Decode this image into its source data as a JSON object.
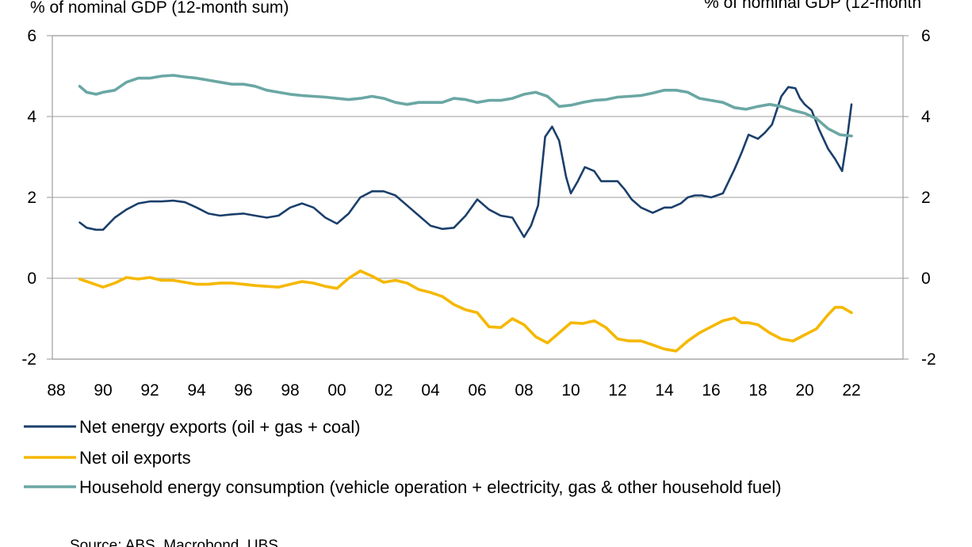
{
  "chart_data": {
    "type": "line",
    "left_axis_title": "% of nominal GDP (12-month sum)",
    "right_axis_title": "% of nominal GDP (12-month",
    "ylim": [
      -2,
      6
    ],
    "y_ticks": [
      "-2",
      "0",
      "2",
      "4",
      "6"
    ],
    "x_ticks": [
      "88",
      "90",
      "92",
      "94",
      "96",
      "98",
      "00",
      "02",
      "04",
      "06",
      "08",
      "10",
      "12",
      "14",
      "16",
      "18",
      "20",
      "22"
    ],
    "x_range": [
      1988,
      2023
    ],
    "series": [
      {
        "name": "Net energy exports (oil + gas + coal)",
        "color": "#1b3f6b",
        "x": [
          1989.0,
          1989.3,
          1989.7,
          1990.0,
          1990.5,
          1991.0,
          1991.5,
          1992.0,
          1992.5,
          1993.0,
          1993.5,
          1994.0,
          1994.5,
          1995.0,
          1995.5,
          1996.0,
          1996.5,
          1997.0,
          1997.5,
          1998.0,
          1998.5,
          1999.0,
          1999.5,
          2000.0,
          2000.5,
          2001.0,
          2001.5,
          2002.0,
          2002.5,
          2003.0,
          2003.5,
          2004.0,
          2004.5,
          2005.0,
          2005.5,
          2006.0,
          2006.5,
          2007.0,
          2007.5,
          2008.0,
          2008.3,
          2008.6,
          2008.9,
          2009.2,
          2009.5,
          2009.8,
          2010.0,
          2010.3,
          2010.6,
          2011.0,
          2011.3,
          2011.6,
          2012.0,
          2012.3,
          2012.6,
          2013.0,
          2013.5,
          2014.0,
          2014.3,
          2014.7,
          2015.0,
          2015.3,
          2015.6,
          2016.0,
          2016.5,
          2017.0,
          2017.3,
          2017.6,
          2018.0,
          2018.3,
          2018.6,
          2019.0,
          2019.3,
          2019.6,
          2019.8,
          2020.0,
          2020.3,
          2020.6,
          2021.0,
          2021.3,
          2021.6,
          2021.8,
          2022.0
        ],
        "values": [
          1.38,
          1.25,
          1.2,
          1.2,
          1.5,
          1.7,
          1.85,
          1.9,
          1.9,
          1.92,
          1.88,
          1.75,
          1.6,
          1.55,
          1.58,
          1.6,
          1.55,
          1.5,
          1.55,
          1.75,
          1.85,
          1.75,
          1.5,
          1.35,
          1.6,
          2.0,
          2.15,
          2.15,
          2.05,
          1.8,
          1.55,
          1.3,
          1.22,
          1.25,
          1.55,
          1.95,
          1.7,
          1.55,
          1.5,
          1.02,
          1.3,
          1.8,
          3.5,
          3.75,
          3.4,
          2.5,
          2.1,
          2.4,
          2.75,
          2.65,
          2.4,
          2.4,
          2.4,
          2.2,
          1.95,
          1.75,
          1.62,
          1.75,
          1.75,
          1.85,
          2.0,
          2.05,
          2.05,
          2.0,
          2.1,
          2.7,
          3.1,
          3.55,
          3.45,
          3.6,
          3.8,
          4.5,
          4.73,
          4.7,
          4.45,
          4.3,
          4.15,
          3.7,
          3.2,
          2.95,
          2.65,
          3.4,
          4.3
        ]
      },
      {
        "name": "Net oil exports",
        "color": "#f5b800",
        "x": [
          1989.0,
          1989.5,
          1990.0,
          1990.5,
          1991.0,
          1991.5,
          1992.0,
          1992.5,
          1993.0,
          1993.5,
          1994.0,
          1994.5,
          1995.0,
          1995.5,
          1996.0,
          1996.5,
          1997.0,
          1997.5,
          1998.0,
          1998.5,
          1999.0,
          1999.5,
          2000.0,
          2000.5,
          2001.0,
          2001.5,
          2002.0,
          2002.5,
          2003.0,
          2003.5,
          2004.0,
          2004.5,
          2005.0,
          2005.5,
          2006.0,
          2006.5,
          2007.0,
          2007.5,
          2008.0,
          2008.5,
          2009.0,
          2009.5,
          2010.0,
          2010.5,
          2011.0,
          2011.5,
          2012.0,
          2012.5,
          2013.0,
          2013.5,
          2014.0,
          2014.5,
          2015.0,
          2015.5,
          2016.0,
          2016.5,
          2017.0,
          2017.3,
          2017.6,
          2018.0,
          2018.5,
          2019.0,
          2019.5,
          2020.0,
          2020.5,
          2021.0,
          2021.3,
          2021.6,
          2022.0
        ],
        "values": [
          -0.02,
          -0.12,
          -0.22,
          -0.12,
          0.02,
          -0.02,
          0.02,
          -0.05,
          -0.05,
          -0.1,
          -0.15,
          -0.15,
          -0.12,
          -0.12,
          -0.15,
          -0.18,
          -0.2,
          -0.22,
          -0.15,
          -0.08,
          -0.12,
          -0.2,
          -0.25,
          0.0,
          0.18,
          0.05,
          -0.1,
          -0.05,
          -0.12,
          -0.28,
          -0.35,
          -0.45,
          -0.65,
          -0.78,
          -0.85,
          -1.2,
          -1.22,
          -1.0,
          -1.15,
          -1.45,
          -1.6,
          -1.35,
          -1.1,
          -1.12,
          -1.05,
          -1.22,
          -1.5,
          -1.55,
          -1.55,
          -1.65,
          -1.75,
          -1.8,
          -1.55,
          -1.35,
          -1.2,
          -1.05,
          -0.98,
          -1.1,
          -1.1,
          -1.15,
          -1.35,
          -1.5,
          -1.55,
          -1.4,
          -1.25,
          -0.9,
          -0.72,
          -0.72,
          -0.85
        ]
      },
      {
        "name": "Household energy consumption (vehicle operation + electricity, gas & other household fuel)",
        "color": "#6aa7a4",
        "x": [
          1989.0,
          1989.3,
          1989.7,
          1990.0,
          1990.5,
          1991.0,
          1991.5,
          1992.0,
          1992.5,
          1993.0,
          1993.5,
          1994.0,
          1994.5,
          1995.0,
          1995.5,
          1996.0,
          1996.5,
          1997.0,
          1997.5,
          1998.0,
          1998.5,
          1999.0,
          1999.5,
          2000.0,
          2000.5,
          2001.0,
          2001.5,
          2002.0,
          2002.5,
          2003.0,
          2003.5,
          2004.0,
          2004.5,
          2005.0,
          2005.5,
          2006.0,
          2006.5,
          2007.0,
          2007.5,
          2008.0,
          2008.5,
          2009.0,
          2009.5,
          2010.0,
          2010.5,
          2011.0,
          2011.5,
          2012.0,
          2012.5,
          2013.0,
          2013.5,
          2014.0,
          2014.5,
          2015.0,
          2015.5,
          2016.0,
          2016.5,
          2017.0,
          2017.5,
          2018.0,
          2018.5,
          2019.0,
          2019.5,
          2020.0,
          2020.5,
          2021.0,
          2021.5,
          2022.0
        ],
        "values": [
          4.75,
          4.6,
          4.55,
          4.6,
          4.65,
          4.85,
          4.95,
          4.95,
          5.0,
          5.02,
          4.98,
          4.95,
          4.9,
          4.85,
          4.8,
          4.8,
          4.75,
          4.65,
          4.6,
          4.55,
          4.52,
          4.5,
          4.48,
          4.45,
          4.42,
          4.45,
          4.5,
          4.45,
          4.35,
          4.3,
          4.35,
          4.35,
          4.35,
          4.45,
          4.42,
          4.35,
          4.4,
          4.4,
          4.45,
          4.55,
          4.6,
          4.5,
          4.25,
          4.28,
          4.35,
          4.4,
          4.42,
          4.48,
          4.5,
          4.52,
          4.58,
          4.65,
          4.65,
          4.6,
          4.45,
          4.4,
          4.35,
          4.22,
          4.18,
          4.25,
          4.3,
          4.25,
          4.15,
          4.08,
          3.95,
          3.7,
          3.55,
          3.52
        ]
      }
    ],
    "legend_position": "bottom",
    "grid": true,
    "source": "Source: ABS, Macrobond, UBS"
  }
}
